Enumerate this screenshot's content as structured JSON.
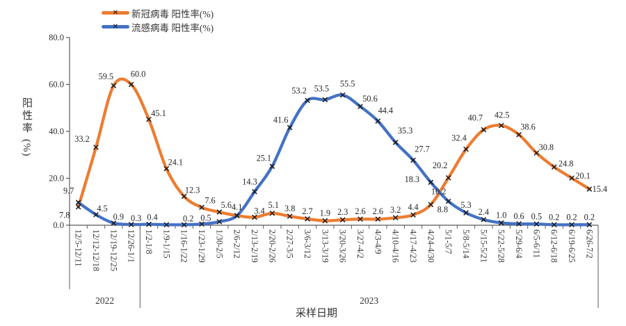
{
  "legend": {
    "marker_glyph": "✕"
  },
  "y_axis": {
    "title": "阳性率",
    "unit": "(%)",
    "tick_labels": [
      "0.0",
      "20.0",
      "40.0",
      "60.0",
      "80.0"
    ]
  },
  "x_axis": {
    "title": "采样日期"
  },
  "chart_data": {
    "type": "line",
    "smooth": true,
    "marker": "x",
    "grid": false,
    "legend_position": "top",
    "ylim": [
      0,
      80
    ],
    "y_ticks": [
      0,
      20,
      40,
      60,
      80
    ],
    "ylabel": "阳性率(%)",
    "xlabel": "采样日期",
    "axis_color": "#595959",
    "marker_color": "#1a1a1a",
    "label_color": "#262626",
    "categories": [
      "12/5-12/11",
      "12/12-12/18",
      "12/19-12/25",
      "12/26-1/1",
      "1/2-1/8",
      "1/9-1/15",
      "1/16-1/22",
      "1/23-1/29",
      "1/30-2/5",
      "2/6-2/12",
      "2/13-2/19",
      "2/20-2/26",
      "2/27-3/5",
      "3/6-3/12",
      "3/13-3/19",
      "3/20-3/26",
      "3/27-4/2",
      "4/3-4/9",
      "4/10-4/16",
      "4/17-4/23",
      "4/24-4/30",
      "5/1-5/7",
      "5/8-5/14",
      "5/15-5/21",
      "5/22-5/28",
      "5/29-6/4",
      "6/5-6/11",
      "6/12-6/18",
      "6/19-6/25",
      "6/26-7/2"
    ],
    "year_groups": [
      {
        "label": "2022",
        "from": 0,
        "to": 3
      },
      {
        "label": "2023",
        "from": 4,
        "to": 29
      }
    ],
    "series": [
      {
        "id": "covid",
        "name": "新冠病毒 阳性率(%)",
        "color": "#ED7D31",
        "values": [
          7.8,
          33.2,
          59.5,
          60.0,
          45.1,
          24.1,
          12.3,
          7.6,
          5.6,
          4.1,
          3.4,
          5.1,
          3.8,
          2.7,
          1.9,
          2.3,
          2.6,
          2.6,
          3.2,
          4.4,
          8.8,
          20.2,
          32.4,
          40.7,
          42.5,
          38.6,
          30.8,
          24.8,
          20.1,
          15.4
        ],
        "labels": [
          "7.8",
          "33.2",
          "59.5",
          "60.0",
          "45.1",
          "24.1",
          "12.3",
          "7.6",
          "5.6",
          "4.1",
          "3.4",
          "5.1",
          "3.8",
          "2.7",
          "1.9",
          "2.3",
          "2.6",
          "2.6",
          "3.2",
          "4.4",
          "8.8",
          "20.2",
          "32.4",
          "40.7",
          "42.5",
          "38.6",
          "30.8",
          "24.8",
          "20.1",
          "15.4"
        ]
      },
      {
        "id": "flu",
        "name": "流感病毒 阳性率(%)",
        "color": "#4472C4",
        "values": [
          9.7,
          4.5,
          0.9,
          0.3,
          0.4,
          0.2,
          0.2,
          0.5,
          1.5,
          4.1,
          14.3,
          25.1,
          41.6,
          53.2,
          53.5,
          55.5,
          50.6,
          44.4,
          35.3,
          27.7,
          18.3,
          10.2,
          5.3,
          2.4,
          1.0,
          0.6,
          0.5,
          0.2,
          0.2,
          0.2
        ],
        "labels": [
          "9.7",
          "4.5",
          "0.9",
          "0.3",
          "0.4",
          null,
          "0.2",
          "0.5",
          null,
          null,
          "14.3",
          "25.1",
          "41.6",
          "53.2",
          "53.5",
          "55.5",
          "50.6",
          "44.4",
          "35.3",
          "27.7",
          "18.3",
          "10.2",
          "5.3",
          "2.4",
          "1.0",
          "0.6",
          "0.5",
          "0.2",
          "0.2",
          "0.2"
        ]
      }
    ],
    "label_offsets": {
      "covid": {
        "0": [
          -20,
          16
        ],
        "1": [
          -20,
          -8
        ],
        "2": [
          -11,
          -9
        ],
        "3": [
          10,
          -11
        ],
        "4": [
          14,
          -5
        ],
        "5": [
          13,
          -5
        ],
        "6": [
          12,
          -5
        ],
        "7": [
          12,
          -6
        ],
        "8": [
          10,
          -6
        ],
        "9": [
          0,
          -8
        ],
        "10": [
          7,
          -5
        ],
        "11": [
          2,
          -8
        ],
        "20": [
          17,
          11
        ],
        "21": [
          -12,
          -14
        ],
        "22": [
          -10,
          -12
        ],
        "23": [
          -12,
          -13
        ],
        "24": [
          1,
          -11
        ],
        "25": [
          13,
          -7
        ],
        "26": [
          14,
          -4
        ],
        "27": [
          17,
          -1
        ],
        "28": [
          16,
          1
        ],
        "29": [
          15,
          4
        ]
      },
      "flu": {
        "0": [
          -14,
          -13
        ],
        "1": [
          9,
          -5
        ],
        "2": [
          7,
          -5
        ],
        "3": [
          7,
          -5
        ],
        "4": [
          5,
          -6
        ],
        "6": [
          6,
          -5
        ],
        "7": [
          6,
          -5
        ],
        "10": [
          -7,
          -10
        ],
        "11": [
          -12,
          -8
        ],
        "12": [
          -13,
          -7
        ],
        "13": [
          -12,
          -10
        ],
        "14": [
          -5,
          -12
        ],
        "15": [
          7,
          -12
        ],
        "16": [
          14,
          -7
        ],
        "17": [
          11,
          -11
        ],
        "18": [
          14,
          -13
        ],
        "19": [
          13,
          -12
        ],
        "20": [
          -27,
          0
        ],
        "21": [
          -14,
          -10
        ]
      }
    }
  }
}
